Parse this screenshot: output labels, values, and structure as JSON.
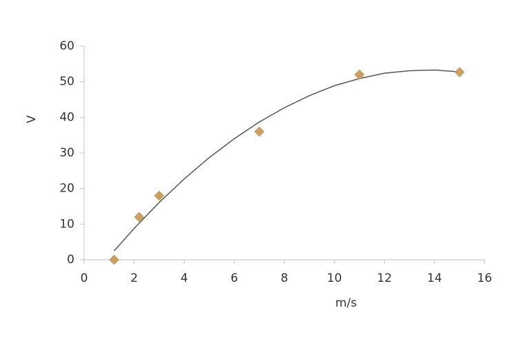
{
  "chart_data": {
    "type": "scatter",
    "x": [
      1.2,
      2.2,
      3,
      7,
      11,
      15
    ],
    "values": [
      0,
      12,
      18,
      36,
      52,
      52.7
    ],
    "color": "#c9a063",
    "trendline": {
      "x": [
        1.2,
        2,
        3,
        4,
        5,
        6,
        7,
        8,
        9,
        10,
        11,
        12,
        13,
        14,
        15
      ],
      "values": [
        2.5,
        8.8,
        16.1,
        22.7,
        28.7,
        34.0,
        38.7,
        42.7,
        46.1,
        48.9,
        50.9,
        52.4,
        53.1,
        53.3,
        52.8
      ],
      "color": "#555555"
    },
    "xlabel": "m/s",
    "ylabel": "V",
    "xlim": [
      0,
      16
    ],
    "xticks": [
      0,
      2,
      4,
      6,
      8,
      10,
      12,
      14,
      16
    ],
    "ylim": [
      0,
      60
    ],
    "yticks": [
      0,
      10,
      20,
      30,
      40,
      50,
      60
    ],
    "grid": false
  }
}
